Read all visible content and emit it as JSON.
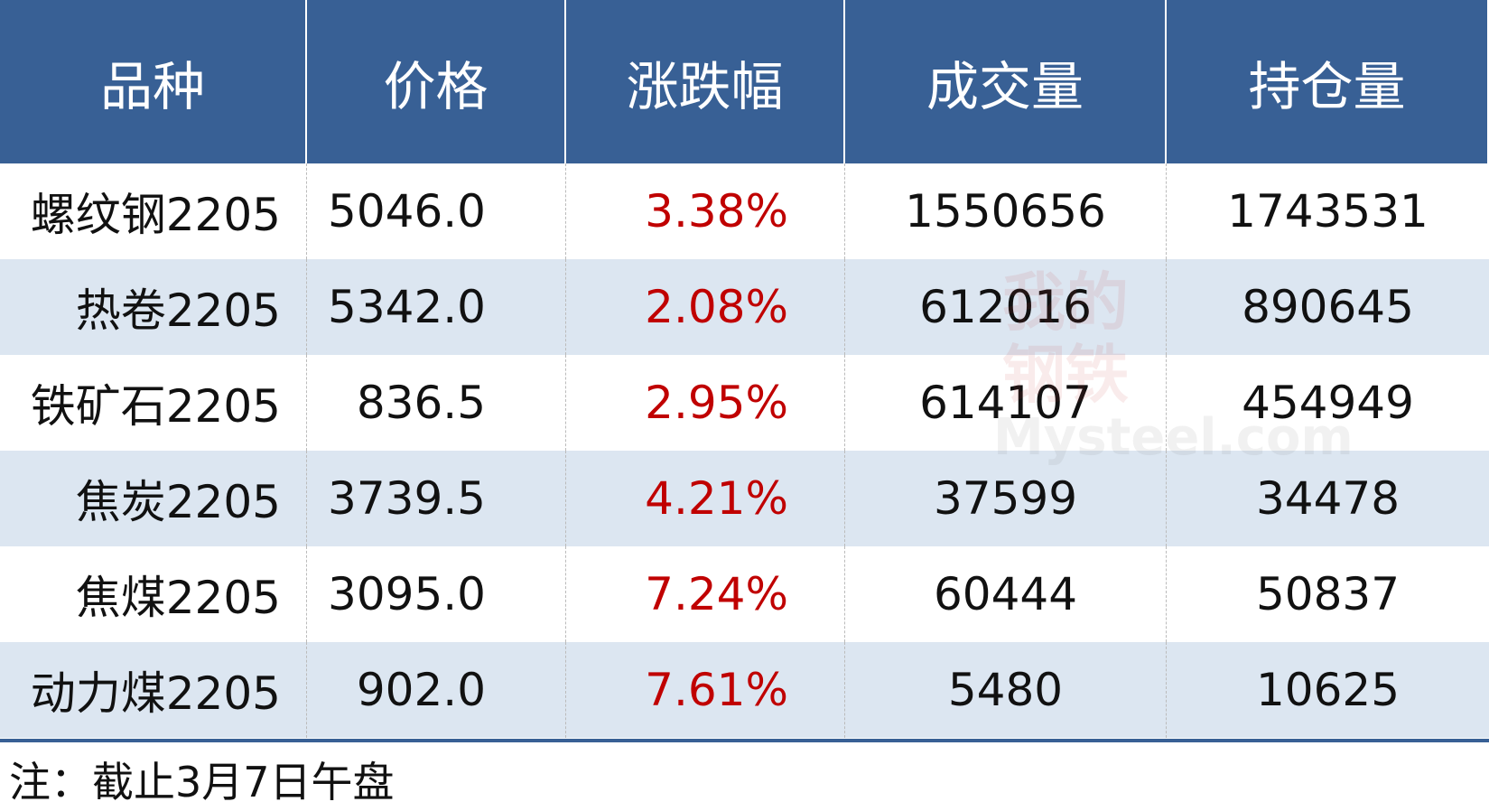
{
  "table": {
    "header": [
      "品种",
      "价格",
      "涨跌幅",
      "成交量",
      "持仓量"
    ],
    "rows": [
      [
        "螺纹钢2205",
        "5046.0",
        "3.38%",
        "1550656",
        "1743531"
      ],
      [
        "热卷2205",
        "5342.0",
        "2.08%",
        "612016",
        "890645"
      ],
      [
        "铁矿石2205",
        "836.5",
        "2.95%",
        "614107",
        "454949"
      ],
      [
        "焦炭2205",
        "3739.5",
        "4.21%",
        "37599",
        "34478"
      ],
      [
        "焦煤2205",
        "3095.0",
        "7.24%",
        "60444",
        "50837"
      ],
      [
        "动力煤2205",
        "902.0",
        "7.61%",
        "5480",
        "10625"
      ]
    ]
  },
  "watermark": {
    "brand": "我的钢铁",
    "site": "Mysteel.com"
  },
  "note": "注：截止3月7日午盘"
}
